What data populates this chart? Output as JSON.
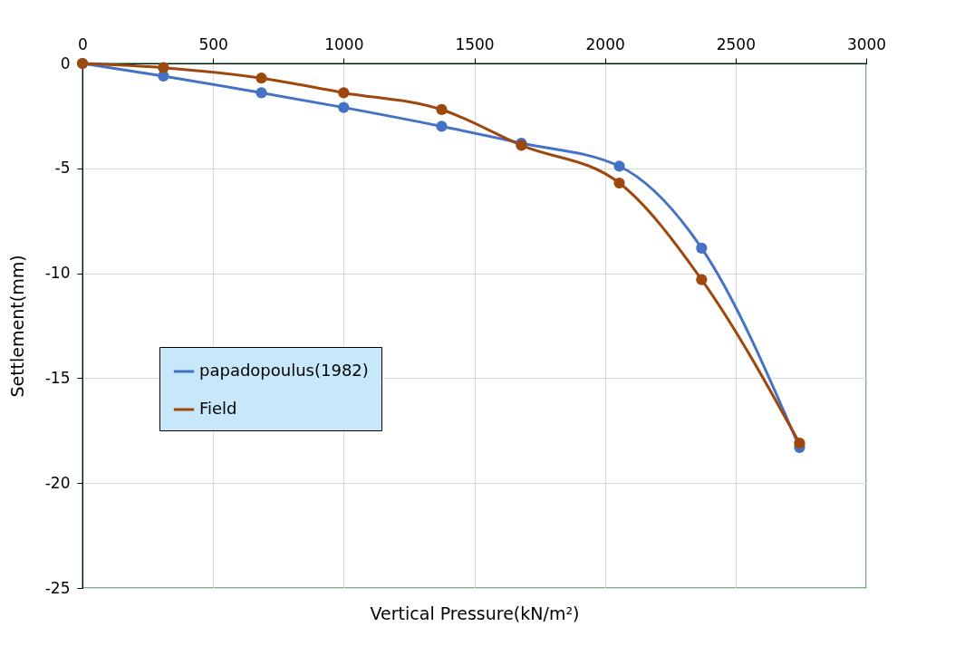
{
  "chart_data": {
    "type": "line",
    "xlabel": "Vertical Pressure(kN/m²)",
    "ylabel": "Settlement(mm)",
    "x": [
      0,
      310,
      685,
      1000,
      1375,
      1680,
      2055,
      2370,
      2745
    ],
    "series": [
      {
        "name": "papadopoulus(1982)",
        "color": "#4472c4",
        "values": [
          0,
          -0.6,
          -1.4,
          -2.1,
          -3.0,
          -3.8,
          -4.9,
          -8.8,
          -18.3
        ]
      },
      {
        "name": "Field",
        "color": "#9e480e",
        "values": [
          0,
          -0.2,
          -0.7,
          -1.4,
          -2.2,
          -3.9,
          -5.7,
          -10.3,
          -18.1
        ]
      }
    ],
    "xlim": [
      0,
      3000
    ],
    "xticks": [
      0,
      500,
      1000,
      1500,
      2000,
      2500,
      3000
    ],
    "ylim": [
      -25,
      0
    ],
    "yticks": [
      -25,
      -20,
      -15,
      -10,
      -5,
      0
    ],
    "grid": true,
    "legend": "left",
    "marker": "circle",
    "line_style": "solid"
  }
}
